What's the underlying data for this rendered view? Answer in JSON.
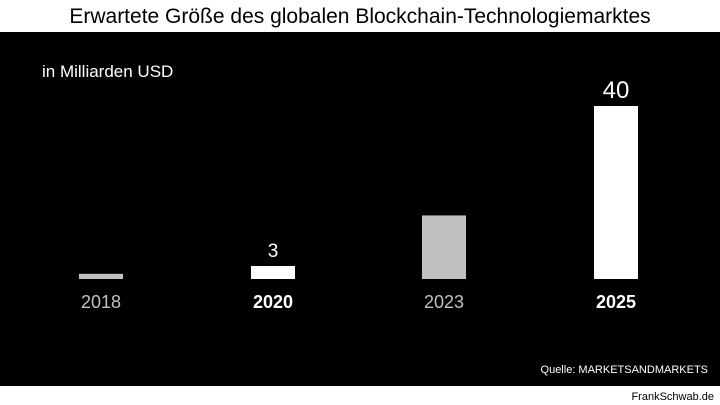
{
  "title": "Erwartete Größe des globalen Blockchain-Technologiemarktes",
  "unit_label": "in Milliarden USD",
  "source": "Quelle: MARKETSANDMARKETS",
  "footer": "FrankSchwab.de",
  "colors": {
    "background": "#000000",
    "highlight": "#ffffff",
    "muted": "#c0c0c0"
  },
  "chart_data": {
    "type": "bar",
    "categories": [
      "2018",
      "2020",
      "2023",
      "2025"
    ],
    "values": [
      1.2,
      3,
      14.7,
      40
    ],
    "data_labels": [
      "",
      "3",
      "",
      "40"
    ],
    "highlighted": [
      false,
      true,
      false,
      true
    ],
    "ylabel": "in Milliarden USD",
    "ylim": [
      0,
      40
    ],
    "grid": false
  }
}
